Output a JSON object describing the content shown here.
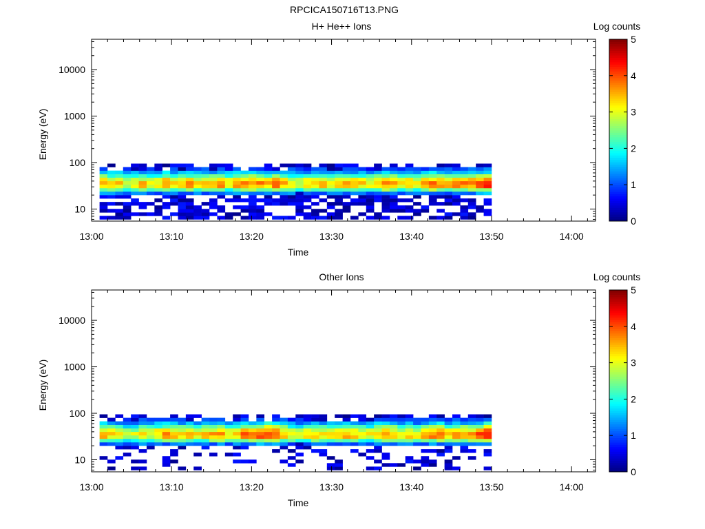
{
  "figure_title": "RPCICA150716T13.PNG",
  "colors": {
    "background": "#ffffff",
    "colormap": [
      "#00007f",
      "#0000ff",
      "#0080ff",
      "#00ffff",
      "#80ff80",
      "#ffff00",
      "#ff8000",
      "#ff0000",
      "#7f0000"
    ]
  },
  "chart_data": [
    {
      "type": "heatmap",
      "title": "H+ He++ Ions",
      "xlabel": "Time",
      "ylabel": "Energy (eV)",
      "x_ticks": [
        "13:00",
        "13:10",
        "13:20",
        "13:30",
        "13:40",
        "13:50",
        "14:00"
      ],
      "x_range": [
        "13:00",
        "14:03"
      ],
      "y_scale": "log",
      "y_range": [
        5.5,
        45000
      ],
      "y_ticks": [
        {
          "value": 10,
          "label": "10"
        },
        {
          "value": 100,
          "label": "100"
        },
        {
          "value": 1000,
          "label": "1000"
        },
        {
          "value": 10000,
          "label": "10000"
        }
      ],
      "colorbar": {
        "label": "Log counts",
        "range": [
          0,
          5
        ],
        "ticks": [
          "0",
          "1",
          "2",
          "3",
          "4",
          "5"
        ]
      },
      "data_time_range": [
        "13:01",
        "13:50"
      ],
      "energy_range": [
        6,
        95
      ],
      "peak_energy": 34,
      "peak_log_counts": [
        3.6,
        3.4,
        3.3,
        2.9,
        3.1,
        3.4,
        3.1,
        3.2,
        3.7,
        3.5,
        3.4,
        3.6,
        3.3,
        3.4,
        3.5,
        3.9,
        3.2,
        3.6,
        3.9,
        3.7,
        3.8,
        3.6,
        3.8,
        3.6,
        3.3,
        2.9,
        3.3,
        3.5,
        3.4,
        3.2,
        3.4,
        3.6,
        3.5,
        3.3,
        3.2,
        3.6,
        3.8,
        3.7,
        3.3,
        3.5,
        3.2,
        3.6,
        3.9,
        3.8,
        3.5,
        3.7,
        3.7,
        3.8,
        4.1,
        4.3
      ],
      "low_energy_noise": "dense"
    },
    {
      "type": "heatmap",
      "title": "Other Ions",
      "xlabel": "Time",
      "ylabel": "Energy (eV)",
      "x_ticks": [
        "13:00",
        "13:10",
        "13:20",
        "13:30",
        "13:40",
        "13:50",
        "14:00"
      ],
      "x_range": [
        "13:00",
        "14:03"
      ],
      "y_scale": "log",
      "y_range": [
        5.5,
        45000
      ],
      "y_ticks": [
        {
          "value": 10,
          "label": "10"
        },
        {
          "value": 100,
          "label": "100"
        },
        {
          "value": 1000,
          "label": "1000"
        },
        {
          "value": 10000,
          "label": "10000"
        }
      ],
      "colorbar": {
        "label": "Log counts",
        "range": [
          0,
          5
        ],
        "ticks": [
          "0",
          "1",
          "2",
          "3",
          "4",
          "5"
        ]
      },
      "data_time_range": [
        "13:01",
        "13:50"
      ],
      "energy_range": [
        6,
        95
      ],
      "peak_energy": 34,
      "peak_log_counts": [
        3.5,
        3.3,
        3.2,
        2.8,
        3.0,
        3.3,
        3.0,
        3.4,
        3.6,
        3.4,
        3.3,
        3.5,
        3.2,
        3.4,
        3.6,
        3.7,
        3.2,
        3.5,
        3.8,
        3.7,
        4.0,
        4.3,
        4.1,
        3.6,
        3.2,
        2.8,
        3.2,
        3.4,
        3.3,
        3.1,
        3.3,
        3.5,
        3.4,
        3.2,
        3.1,
        3.5,
        3.7,
        3.6,
        3.2,
        3.4,
        3.1,
        3.5,
        3.8,
        3.9,
        3.4,
        3.6,
        3.6,
        3.7,
        4.0,
        4.3
      ],
      "low_energy_noise": "sparse"
    }
  ]
}
